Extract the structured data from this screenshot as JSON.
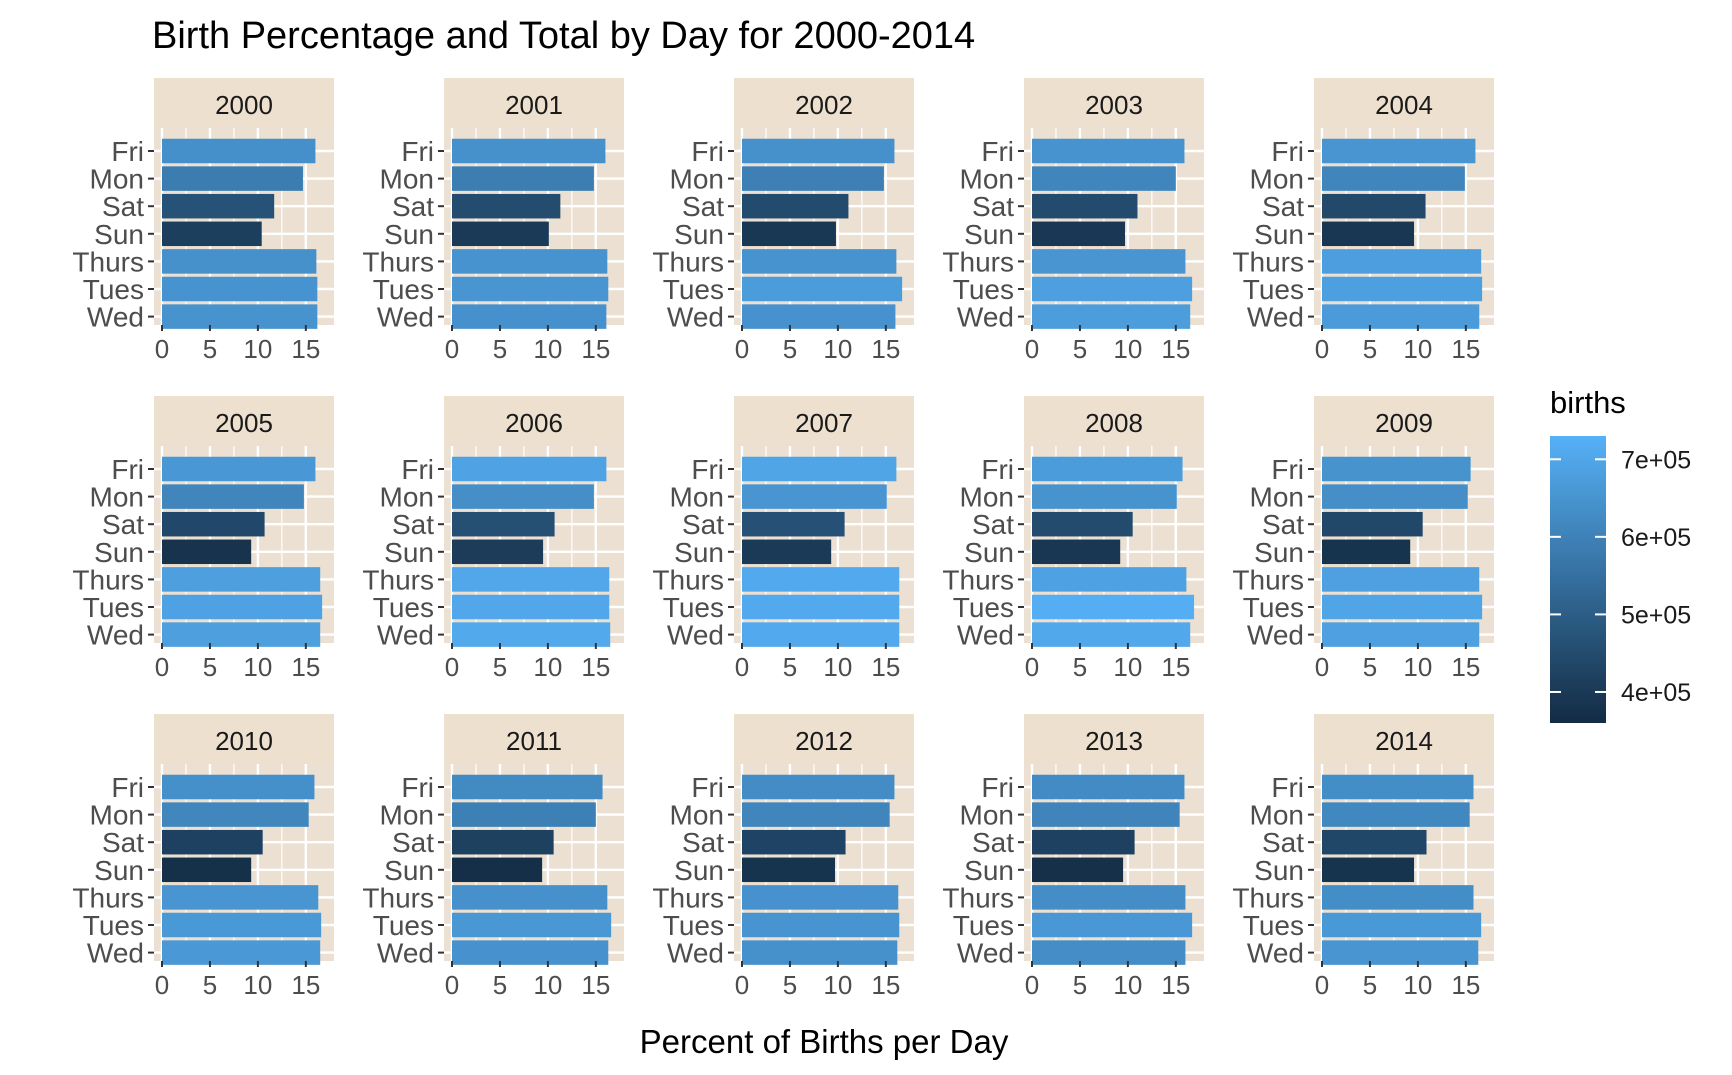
{
  "chart_data": {
    "type": "bar",
    "orientation": "horizontal",
    "title": "Birth Percentage and Total by Day for 2000-2014",
    "xlabel": "Percent of Births per Day",
    "ylabel": "",
    "xlim": [
      0,
      17
    ],
    "x_ticks": [
      0,
      5,
      10,
      15
    ],
    "categories": [
      "Fri",
      "Mon",
      "Sat",
      "Sun",
      "Thurs",
      "Tues",
      "Wed"
    ],
    "grid": true,
    "panel_background": "#ebe0d1",
    "strip_background": "#ede0cf",
    "gradient_colors": {
      "low": "#132b43",
      "high": "#56b1f7"
    },
    "legend": {
      "title": "births",
      "position": "right",
      "range": [
        360000,
        730000
      ],
      "tick_values": [
        400000,
        500000,
        600000,
        700000
      ],
      "tick_labels": [
        "4e+05",
        "5e+05",
        "6e+05",
        "7e+05"
      ]
    },
    "facets": [
      {
        "label": "2000",
        "percent": [
          16.0,
          14.7,
          11.7,
          10.4,
          16.1,
          16.2,
          16.2
        ],
        "births": [
          638000,
          586000,
          467000,
          415000,
          642000,
          647000,
          646000
        ]
      },
      {
        "label": "2001",
        "percent": [
          16.0,
          14.8,
          11.3,
          10.1,
          16.2,
          16.3,
          16.1
        ],
        "births": [
          640000,
          589000,
          451000,
          402000,
          647000,
          652000,
          643000
        ]
      },
      {
        "label": "2002",
        "percent": [
          15.9,
          14.8,
          11.1,
          9.8,
          16.1,
          16.7,
          16.0
        ],
        "births": [
          640000,
          596000,
          447000,
          395000,
          648000,
          672000,
          645000
        ]
      },
      {
        "label": "2003",
        "percent": [
          15.9,
          15.0,
          11.0,
          9.7,
          16.0,
          16.7,
          16.5
        ],
        "births": [
          647000,
          611000,
          447000,
          396000,
          653000,
          680000,
          674000
        ]
      },
      {
        "label": "2004",
        "percent": [
          16.0,
          14.9,
          10.8,
          9.6,
          16.6,
          16.7,
          16.4
        ],
        "births": [
          654000,
          610000,
          441000,
          392000,
          678000,
          683000,
          670000
        ]
      },
      {
        "label": "2005",
        "percent": [
          16.0,
          14.8,
          10.7,
          9.3,
          16.5,
          16.7,
          16.5
        ],
        "births": [
          658000,
          608000,
          440000,
          383000,
          679000,
          687000,
          679000
        ]
      },
      {
        "label": "2006",
        "percent": [
          16.1,
          14.8,
          10.7,
          9.5,
          16.4,
          16.4,
          16.5
        ],
        "births": [
          690000,
          634000,
          459000,
          407000,
          703000,
          703000,
          707000
        ]
      },
      {
        "label": "2007",
        "percent": [
          16.1,
          15.1,
          10.7,
          9.3,
          16.4,
          16.4,
          16.4
        ],
        "births": [
          696000,
          653000,
          463000,
          402000,
          709000,
          709000,
          709000
        ]
      },
      {
        "label": "2008",
        "percent": [
          15.7,
          15.1,
          10.5,
          9.2,
          16.1,
          16.9,
          16.5
        ],
        "births": [
          671000,
          646000,
          449000,
          393000,
          688000,
          722000,
          705000
        ]
      },
      {
        "label": "2009",
        "percent": [
          15.5,
          15.2,
          10.5,
          9.2,
          16.4,
          16.7,
          16.4
        ],
        "births": [
          646000,
          634000,
          438000,
          384000,
          684000,
          696000,
          684000
        ]
      },
      {
        "label": "2010",
        "percent": [
          15.9,
          15.3,
          10.5,
          9.3,
          16.3,
          16.6,
          16.5
        ],
        "births": [
          637000,
          613000,
          421000,
          373000,
          653000,
          665000,
          661000
        ]
      },
      {
        "label": "2011",
        "percent": [
          15.7,
          15.0,
          10.6,
          9.4,
          16.2,
          16.6,
          16.3
        ],
        "births": [
          622000,
          594000,
          420000,
          372000,
          641000,
          657000,
          645000
        ]
      },
      {
        "label": "2012",
        "percent": [
          15.9,
          15.4,
          10.8,
          9.7,
          16.3,
          16.4,
          16.2
        ],
        "births": [
          629000,
          609000,
          427000,
          384000,
          645000,
          649000,
          641000
        ]
      },
      {
        "label": "2013",
        "percent": [
          15.9,
          15.4,
          10.7,
          9.5,
          16.0,
          16.7,
          16.0
        ],
        "births": [
          626000,
          607000,
          422000,
          375000,
          631000,
          658000,
          631000
        ]
      },
      {
        "label": "2014",
        "percent": [
          15.8,
          15.4,
          10.9,
          9.6,
          15.8,
          16.6,
          16.3
        ],
        "births": [
          632000,
          616000,
          436000,
          384000,
          632000,
          664000,
          652000
        ]
      }
    ]
  }
}
